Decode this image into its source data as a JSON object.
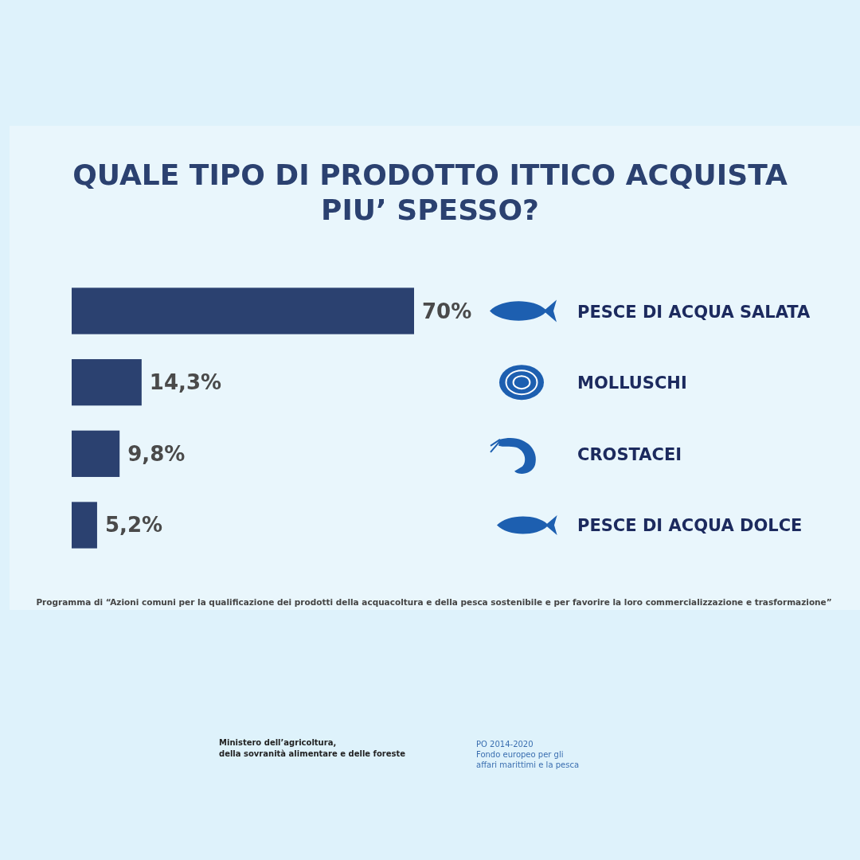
{
  "chart_data": {
    "type": "bar",
    "orientation": "horizontal",
    "title": "QUALE TIPO DI PRODOTTO ITTICO ACQUISTA PIU’ SPESSO?",
    "categories": [
      "PESCE DI ACQUA SALATA",
      "MOLLUSCHI",
      "CROSTACEI",
      "PESCE DI ACQUA DOLCE"
    ],
    "values": [
      70,
      14.3,
      9.8,
      5.2
    ],
    "value_labels": [
      "70%",
      "14,3%",
      "9,8%",
      "5,2%"
    ],
    "color": "#2b4170",
    "annotations": [
      "Programma di “Azioni comuni per la qualificazione dei prodotti della acquacoltura e della pesca sostenibile e per favorire la loro commercializzazione e trasformazione”",
      "Ministero dell’agricoltura, della sovranità alimentare e delle foreste",
      "PO 2014-2020 Fondo europeo per gli affari marittimi e la pesca"
    ]
  }
}
